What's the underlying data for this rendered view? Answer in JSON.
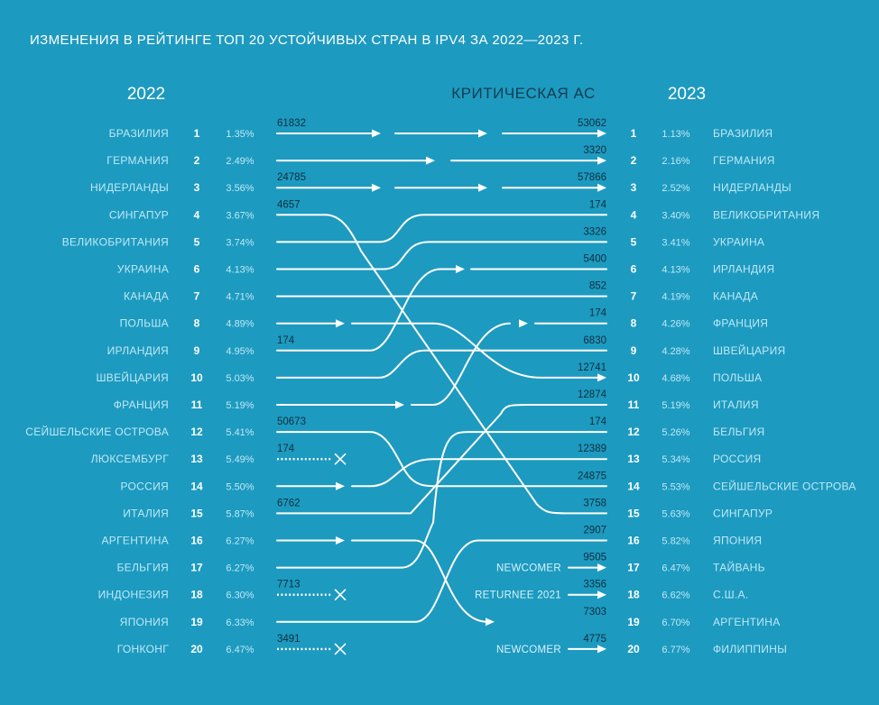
{
  "title": "ИЗМЕНЕНИЯ В РЕЙТИНГЕ ТОП 20 УСТОЙЧИВЫХ СТРАН В IPV4 ЗА 2022—2023 Г.",
  "left_year": "2022",
  "right_year": "2023",
  "center_header": "КРИТИЧЕСКАЯ АС",
  "colors": {
    "background": "#1d9ac0",
    "line": "#ffffff",
    "as_label": "#0f2f3f"
  },
  "chart_data": {
    "type": "slope",
    "title": "ИЗМЕНЕНИЯ В РЕЙТИНГЕ ТОП 20 УСТОЙЧИВЫХ СТРАН В IPV4 ЗА 2022—2023 Г.",
    "left": [
      {
        "rank": "1",
        "country": "БРАЗИЛИЯ",
        "pct": "1.35%",
        "as": "61832"
      },
      {
        "rank": "2",
        "country": "ГЕРМАНИЯ",
        "pct": "2.49%",
        "as": ""
      },
      {
        "rank": "3",
        "country": "НИДЕРЛАНДЫ",
        "pct": "3.56%",
        "as": "24785"
      },
      {
        "rank": "4",
        "country": "СИНГАПУР",
        "pct": "3.67%",
        "as": "4657"
      },
      {
        "rank": "5",
        "country": "ВЕЛИКОБРИТАНИЯ",
        "pct": "3.74%",
        "as": ""
      },
      {
        "rank": "6",
        "country": "УКРАИНА",
        "pct": "4.13%",
        "as": ""
      },
      {
        "rank": "7",
        "country": "КАНАДА",
        "pct": "4.71%",
        "as": ""
      },
      {
        "rank": "8",
        "country": "ПОЛЬША",
        "pct": "4.89%",
        "as": ""
      },
      {
        "rank": "9",
        "country": "ИРЛАНДИЯ",
        "pct": "4.95%",
        "as": "174"
      },
      {
        "rank": "10",
        "country": "ШВЕЙЦАРИЯ",
        "pct": "5.03%",
        "as": ""
      },
      {
        "rank": "11",
        "country": "ФРАНЦИЯ",
        "pct": "5.19%",
        "as": ""
      },
      {
        "rank": "12",
        "country": "СЕЙШЕЛЬСКИЕ ОСТРОВА",
        "pct": "5.41%",
        "as": "50673"
      },
      {
        "rank": "13",
        "country": "ЛЮКСЕМБУРГ",
        "pct": "5.49%",
        "as": "174"
      },
      {
        "rank": "14",
        "country": "РОССИЯ",
        "pct": "5.50%",
        "as": ""
      },
      {
        "rank": "15",
        "country": "ИТАЛИЯ",
        "pct": "5.87%",
        "as": "6762"
      },
      {
        "rank": "16",
        "country": "АРГЕНТИНА",
        "pct": "6.27%",
        "as": ""
      },
      {
        "rank": "17",
        "country": "БЕЛЬГИЯ",
        "pct": "6.27%",
        "as": ""
      },
      {
        "rank": "18",
        "country": "ИНДОНЕЗИЯ",
        "pct": "6.30%",
        "as": "7713"
      },
      {
        "rank": "19",
        "country": "ЯПОНИЯ",
        "pct": "6.33%",
        "as": ""
      },
      {
        "rank": "20",
        "country": "ГОНКОНГ",
        "pct": "6.47%",
        "as": "3491"
      }
    ],
    "right": [
      {
        "rank": "1",
        "country": "БРАЗИЛИЯ",
        "pct": "1.13%",
        "as": "53062"
      },
      {
        "rank": "2",
        "country": "ГЕРМАНИЯ",
        "pct": "2.16%",
        "as": "3320"
      },
      {
        "rank": "3",
        "country": "НИДЕРЛАНДЫ",
        "pct": "2.52%",
        "as": "57866"
      },
      {
        "rank": "4",
        "country": "ВЕЛИКОБРИТАНИЯ",
        "pct": "3.40%",
        "as": "174"
      },
      {
        "rank": "5",
        "country": "УКРАИНА",
        "pct": "3.41%",
        "as": "3326"
      },
      {
        "rank": "6",
        "country": "ИРЛАНДИЯ",
        "pct": "4.13%",
        "as": "5400"
      },
      {
        "rank": "7",
        "country": "КАНАДА",
        "pct": "4.19%",
        "as": "852"
      },
      {
        "rank": "8",
        "country": "ФРАНЦИЯ",
        "pct": "4.26%",
        "as": "174"
      },
      {
        "rank": "9",
        "country": "ШВЕЙЦАРИЯ",
        "pct": "4.28%",
        "as": "6830"
      },
      {
        "rank": "10",
        "country": "ПОЛЬША",
        "pct": "4.68%",
        "as": "12741"
      },
      {
        "rank": "11",
        "country": "ИТАЛИЯ",
        "pct": "5.19%",
        "as": "12874"
      },
      {
        "rank": "12",
        "country": "БЕЛЬГИЯ",
        "pct": "5.26%",
        "as": "174"
      },
      {
        "rank": "13",
        "country": "РОССИЯ",
        "pct": "5.34%",
        "as": "12389"
      },
      {
        "rank": "14",
        "country": "СЕЙШЕЛЬСКИЕ ОСТРОВА",
        "pct": "5.53%",
        "as": "24875"
      },
      {
        "rank": "15",
        "country": "СИНГАПУР",
        "pct": "5.63%",
        "as": "3758"
      },
      {
        "rank": "16",
        "country": "ЯПОНИЯ",
        "pct": "5.82%",
        "as": "2907"
      },
      {
        "rank": "17",
        "country": "ТАЙВАНЬ",
        "pct": "6.47%",
        "as": "9505",
        "note": "NEWCOMER"
      },
      {
        "rank": "18",
        "country": "С.Ш.А.",
        "pct": "6.62%",
        "as": "3356",
        "note": "RETURNEE 2021"
      },
      {
        "rank": "19",
        "country": "АРГЕНТИНА",
        "pct": "6.70%",
        "as": "7303"
      },
      {
        "rank": "20",
        "country": "ФИЛИППИНЫ",
        "pct": "6.77%",
        "as": "4775",
        "note": "NEWCOMER"
      }
    ],
    "links": [
      {
        "from": 1,
        "to": 1,
        "style": "arrow"
      },
      {
        "from": 2,
        "to": 2,
        "style": "arrow"
      },
      {
        "from": 3,
        "to": 3,
        "style": "arrow"
      },
      {
        "from": 4,
        "to": 15,
        "style": "line"
      },
      {
        "from": 5,
        "to": 4,
        "style": "line"
      },
      {
        "from": 6,
        "to": 5,
        "style": "line"
      },
      {
        "from": 7,
        "to": 7,
        "style": "line"
      },
      {
        "from": 8,
        "to": 10,
        "style": "arrow"
      },
      {
        "from": 9,
        "to": 6,
        "style": "arrow"
      },
      {
        "from": 10,
        "to": 9,
        "style": "line"
      },
      {
        "from": 11,
        "to": 8,
        "style": "arrow"
      },
      {
        "from": 12,
        "to": 14,
        "style": "line"
      },
      {
        "from": 13,
        "to": null,
        "style": "dropped"
      },
      {
        "from": 14,
        "to": 13,
        "style": "arrow"
      },
      {
        "from": 15,
        "to": 11,
        "style": "line"
      },
      {
        "from": 16,
        "to": 19,
        "style": "arrow"
      },
      {
        "from": 17,
        "to": 12,
        "style": "line"
      },
      {
        "from": 18,
        "to": null,
        "style": "dropped"
      },
      {
        "from": 19,
        "to": 16,
        "style": "line"
      },
      {
        "from": 20,
        "to": null,
        "style": "dropped"
      }
    ]
  }
}
